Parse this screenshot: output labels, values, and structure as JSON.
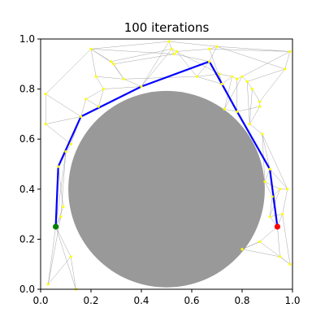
{
  "chart_data": {
    "type": "scatter",
    "title": "100 iterations",
    "xlabel": "",
    "ylabel": "",
    "xlim": [
      0.0,
      1.0
    ],
    "ylim": [
      0.0,
      1.0
    ],
    "x_ticks": [
      "0.0",
      "0.2",
      "0.4",
      "0.6",
      "0.8",
      "1.0"
    ],
    "y_ticks": [
      "0.0",
      "0.2",
      "0.4",
      "0.6",
      "0.8",
      "1.0"
    ],
    "grid": false,
    "obstacle": {
      "shape": "circle",
      "center": [
        0.5,
        0.4
      ],
      "radius": 0.39,
      "color": "#999999"
    },
    "start": {
      "x": 0.06,
      "y": 0.25,
      "color": "#008000"
    },
    "goal": {
      "x": 0.94,
      "y": 0.25,
      "color": "#ff0000"
    },
    "node_color": "#ffff00",
    "edge_color": "#888888",
    "path_color": "#0000ff",
    "nodes": [
      [
        0.06,
        0.25
      ],
      [
        0.07,
        0.49
      ],
      [
        0.16,
        0.69
      ],
      [
        0.4,
        0.81
      ],
      [
        0.67,
        0.91
      ],
      [
        0.72,
        0.82
      ],
      [
        0.78,
        0.71
      ],
      [
        0.91,
        0.48
      ],
      [
        0.94,
        0.25
      ],
      [
        0.2,
        0.96
      ],
      [
        0.28,
        0.91
      ],
      [
        0.29,
        0.9
      ],
      [
        0.22,
        0.85
      ],
      [
        0.25,
        0.8
      ],
      [
        0.18,
        0.76
      ],
      [
        0.23,
        0.73
      ],
      [
        0.33,
        0.84
      ],
      [
        0.02,
        0.78
      ],
      [
        0.02,
        0.66
      ],
      [
        0.1,
        0.55
      ],
      [
        0.12,
        0.58
      ],
      [
        0.08,
        0.29
      ],
      [
        0.09,
        0.33
      ],
      [
        0.03,
        0.02
      ],
      [
        0.14,
        0.0
      ],
      [
        0.12,
        0.13
      ],
      [
        0.51,
        0.99
      ],
      [
        0.52,
        0.96
      ],
      [
        0.53,
        0.94
      ],
      [
        0.54,
        0.95
      ],
      [
        0.62,
        0.85
      ],
      [
        0.67,
        0.96
      ],
      [
        0.7,
        0.97
      ],
      [
        0.71,
        0.86
      ],
      [
        0.76,
        0.85
      ],
      [
        0.78,
        0.84
      ],
      [
        0.8,
        0.85
      ],
      [
        0.82,
        0.83
      ],
      [
        0.84,
        0.8
      ],
      [
        0.87,
        0.75
      ],
      [
        0.87,
        0.73
      ],
      [
        0.97,
        0.88
      ],
      [
        0.99,
        0.95
      ],
      [
        0.73,
        0.72
      ],
      [
        0.83,
        0.66
      ],
      [
        0.88,
        0.62
      ],
      [
        0.89,
        0.43
      ],
      [
        0.92,
        0.37
      ],
      [
        0.95,
        0.4
      ],
      [
        0.98,
        0.4
      ],
      [
        0.96,
        0.3
      ],
      [
        0.99,
        0.1
      ],
      [
        0.95,
        0.13
      ],
      [
        0.87,
        0.19
      ],
      [
        0.8,
        0.16
      ],
      [
        0.91,
        0.29
      ]
    ],
    "edges": [
      [
        0,
        1
      ],
      [
        1,
        2
      ],
      [
        2,
        3
      ],
      [
        3,
        4
      ],
      [
        4,
        5
      ],
      [
        5,
        6
      ],
      [
        6,
        7
      ],
      [
        7,
        8
      ],
      [
        2,
        14
      ],
      [
        14,
        15
      ],
      [
        15,
        13
      ],
      [
        13,
        12
      ],
      [
        12,
        9
      ],
      [
        9,
        10
      ],
      [
        10,
        11
      ],
      [
        11,
        16
      ],
      [
        16,
        3
      ],
      [
        12,
        16
      ],
      [
        14,
        13
      ],
      [
        10,
        16
      ],
      [
        9,
        11
      ],
      [
        13,
        3
      ],
      [
        17,
        18
      ],
      [
        17,
        2
      ],
      [
        17,
        9
      ],
      [
        18,
        2
      ],
      [
        18,
        20
      ],
      [
        20,
        2
      ],
      [
        20,
        1
      ],
      [
        19,
        1
      ],
      [
        19,
        0
      ],
      [
        19,
        21
      ],
      [
        21,
        0
      ],
      [
        22,
        0
      ],
      [
        22,
        1
      ],
      [
        21,
        23
      ],
      [
        23,
        0
      ],
      [
        24,
        0
      ],
      [
        24,
        25
      ],
      [
        25,
        0
      ],
      [
        23,
        25
      ],
      [
        3,
        26
      ],
      [
        3,
        27
      ],
      [
        26,
        27
      ],
      [
        27,
        28
      ],
      [
        28,
        29
      ],
      [
        29,
        31
      ],
      [
        31,
        32
      ],
      [
        32,
        4
      ],
      [
        4,
        30
      ],
      [
        30,
        33
      ],
      [
        33,
        5
      ],
      [
        28,
        4
      ],
      [
        29,
        30
      ],
      [
        26,
        32
      ],
      [
        27,
        33
      ],
      [
        31,
        5
      ],
      [
        9,
        26
      ],
      [
        10,
        27
      ],
      [
        11,
        28
      ],
      [
        16,
        30
      ],
      [
        9,
        28
      ],
      [
        5,
        34
      ],
      [
        34,
        35
      ],
      [
        35,
        36
      ],
      [
        36,
        37
      ],
      [
        37,
        38
      ],
      [
        38,
        39
      ],
      [
        39,
        40
      ],
      [
        40,
        6
      ],
      [
        35,
        6
      ],
      [
        36,
        43
      ],
      [
        43,
        6
      ],
      [
        37,
        44
      ],
      [
        44,
        45
      ],
      [
        45,
        7
      ],
      [
        40,
        44
      ],
      [
        41,
        42
      ],
      [
        42,
        32
      ],
      [
        41,
        37
      ],
      [
        42,
        36
      ],
      [
        41,
        39
      ],
      [
        32,
        41
      ],
      [
        31,
        42
      ],
      [
        34,
        43
      ],
      [
        38,
        44
      ],
      [
        33,
        34
      ],
      [
        30,
        5
      ],
      [
        7,
        46
      ],
      [
        46,
        47
      ],
      [
        47,
        48
      ],
      [
        48,
        49
      ],
      [
        49,
        50
      ],
      [
        50,
        8
      ],
      [
        47,
        8
      ],
      [
        45,
        49
      ],
      [
        45,
        46
      ],
      [
        8,
        53
      ],
      [
        53,
        54
      ],
      [
        54,
        52
      ],
      [
        52,
        51
      ],
      [
        51,
        50
      ],
      [
        8,
        52
      ],
      [
        46,
        48
      ],
      [
        7,
        49
      ],
      [
        50,
        55
      ],
      [
        55,
        8
      ],
      [
        53,
        51
      ],
      [
        54,
        53
      ],
      [
        47,
        55
      ],
      [
        48,
        55
      ]
    ],
    "path": [
      0,
      1,
      2,
      3,
      4,
      5,
      6,
      7,
      8
    ]
  }
}
